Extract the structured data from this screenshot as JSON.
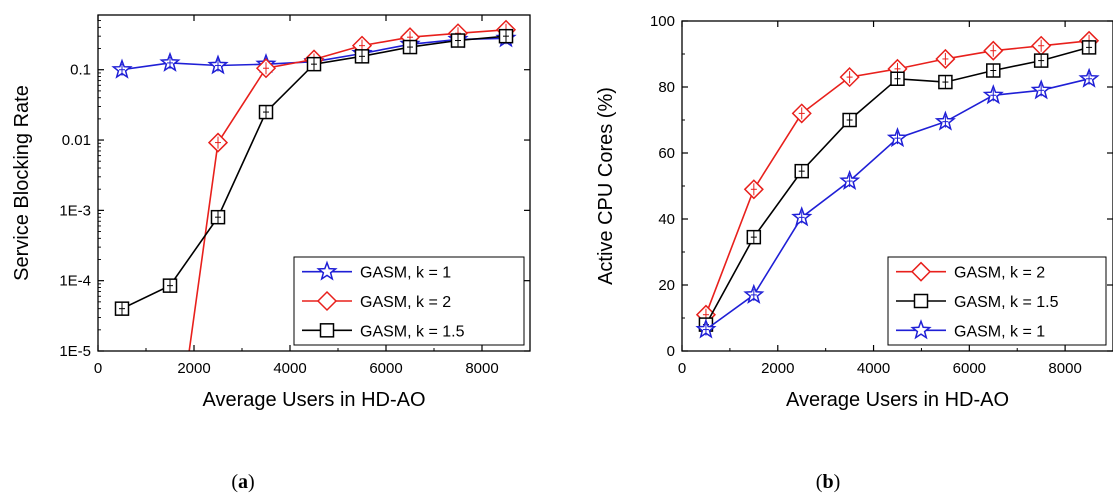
{
  "chart_data": [
    {
      "type": "line",
      "panel": "a",
      "caption": {
        "open": "(",
        "letter": "a",
        "close": ")"
      },
      "xlabel": "Average Users in HD-AO",
      "ylabel": "Service Blocking Rate",
      "xlim": [
        0,
        9000
      ],
      "ylim": [
        1e-05,
        0.6
      ],
      "yscale": "log",
      "xticks": [
        0,
        2000,
        4000,
        6000,
        8000
      ],
      "yticks": [
        {
          "value": 0.1,
          "label": "0.1"
        },
        {
          "value": 0.01,
          "label": "0.01"
        },
        {
          "value": 0.001,
          "label": "1E-3"
        },
        {
          "value": 0.0001,
          "label": "1E-4"
        },
        {
          "value": 1e-05,
          "label": "1E-5"
        }
      ],
      "legend_position": "bottom-right",
      "series": [
        {
          "name": "GASM, k = 1",
          "marker": "star",
          "color": "#1f1fd6",
          "x": [
            500,
            1500,
            2500,
            3500,
            4500,
            5500,
            6500,
            7500,
            8500
          ],
          "y": [
            0.1,
            0.125,
            0.115,
            0.12,
            0.13,
            0.17,
            0.23,
            0.27,
            0.28
          ]
        },
        {
          "name": "GASM, k = 2",
          "marker": "diamond",
          "color": "#e8201c",
          "x": [
            1900,
            2500,
            3500,
            4500,
            5500,
            6500,
            7500,
            8500
          ],
          "y": [
            1e-05,
            0.0092,
            0.105,
            0.14,
            0.22,
            0.29,
            0.33,
            0.37
          ]
        },
        {
          "name": "GASM, k = 1.5",
          "marker": "square",
          "color": "#000000",
          "x": [
            500,
            1500,
            2500,
            3500,
            4500,
            5500,
            6500,
            7500,
            8500
          ],
          "y": [
            4e-05,
            8.5e-05,
            0.0008,
            0.025,
            0.12,
            0.155,
            0.21,
            0.26,
            0.3
          ]
        }
      ]
    },
    {
      "type": "line",
      "panel": "b",
      "caption": {
        "open": "(",
        "letter": "b",
        "close": ")"
      },
      "xlabel": "Average Users in HD-AO",
      "ylabel": "Active CPU Cores (%)",
      "xlim": [
        0,
        9000
      ],
      "ylim": [
        0,
        100
      ],
      "xticks": [
        0,
        2000,
        4000,
        6000,
        8000
      ],
      "yticks": [
        0,
        20,
        40,
        60,
        80,
        100
      ],
      "legend_position": "bottom-right",
      "series": [
        {
          "name": "GASM, k = 2",
          "marker": "diamond",
          "color": "#e8201c",
          "x": [
            500,
            1500,
            2500,
            3500,
            4500,
            5500,
            6500,
            7500,
            8500
          ],
          "y": [
            11,
            49,
            72,
            83,
            85.5,
            88.5,
            91,
            92.5,
            94
          ]
        },
        {
          "name": "GASM, k = 1.5",
          "marker": "square",
          "color": "#000000",
          "x": [
            500,
            1500,
            2500,
            3500,
            4500,
            5500,
            6500,
            7500,
            8500
          ],
          "y": [
            8,
            34.5,
            54.5,
            70,
            82.5,
            81.5,
            85,
            88,
            92
          ]
        },
        {
          "name": "GASM, k = 1",
          "marker": "star",
          "color": "#1f1fd6",
          "x": [
            500,
            1500,
            2500,
            3500,
            4500,
            5500,
            6500,
            7500,
            8500
          ],
          "y": [
            6.5,
            17,
            40.5,
            51.5,
            64.5,
            69.5,
            77.5,
            79,
            82.5
          ]
        }
      ]
    }
  ]
}
